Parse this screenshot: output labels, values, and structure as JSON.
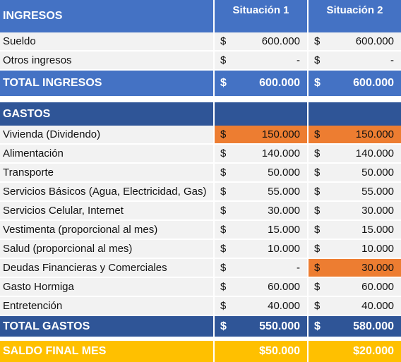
{
  "ingresos": {
    "title": "INGRESOS",
    "columns": [
      "Situación 1",
      "Situación 2"
    ],
    "rows": [
      {
        "label": "Sueldo",
        "cells": [
          [
            "$",
            "600.000"
          ],
          [
            "$",
            "600.000"
          ]
        ]
      },
      {
        "label": "Otros ingresos",
        "cells": [
          [
            "$",
            "-"
          ],
          [
            "$",
            "-"
          ]
        ]
      }
    ],
    "total": {
      "label": "TOTAL INGRESOS",
      "cells": [
        [
          "$",
          "600.000"
        ],
        [
          "$",
          "600.000"
        ]
      ]
    }
  },
  "gastos": {
    "title": "GASTOS",
    "rows": [
      {
        "label": "Vivienda (Dividendo)",
        "cells": [
          [
            "$",
            "150.000"
          ],
          [
            "$",
            "150.000"
          ]
        ]
      },
      {
        "label": "Alimentación",
        "cells": [
          [
            "$",
            "140.000"
          ],
          [
            "$",
            "140.000"
          ]
        ]
      },
      {
        "label": "Transporte",
        "cells": [
          [
            "$",
            "50.000"
          ],
          [
            "$",
            "50.000"
          ]
        ]
      },
      {
        "label": "Servicios Básicos (Agua, Electricidad, Gas)",
        "cells": [
          [
            "$",
            "55.000"
          ],
          [
            "$",
            "55.000"
          ]
        ]
      },
      {
        "label": "Servicios Celular, Internet",
        "cells": [
          [
            "$",
            "30.000"
          ],
          [
            "$",
            "30.000"
          ]
        ]
      },
      {
        "label": "Vestimenta (proporcional al mes)",
        "cells": [
          [
            "$",
            "15.000"
          ],
          [
            "$",
            "15.000"
          ]
        ]
      },
      {
        "label": "Salud (proporcional al mes)",
        "cells": [
          [
            "$",
            "10.000"
          ],
          [
            "$",
            "10.000"
          ]
        ]
      },
      {
        "label": "Deudas Financieras y Comerciales",
        "cells": [
          [
            "$",
            "-"
          ],
          [
            "$",
            "30.000"
          ]
        ]
      },
      {
        "label": "Gasto Hormiga",
        "cells": [
          [
            "$",
            "60.000"
          ],
          [
            "$",
            "60.000"
          ]
        ]
      },
      {
        "label": "Entretención",
        "cells": [
          [
            "$",
            "40.000"
          ],
          [
            "$",
            "40.000"
          ]
        ]
      }
    ],
    "total": {
      "label": "TOTAL GASTOS",
      "cells": [
        [
          "$",
          "550.000"
        ],
        [
          "$",
          "580.000"
        ]
      ]
    }
  },
  "saldo": {
    "label": "SALDO FINAL MES",
    "cells": [
      "$50.000",
      "$20.000"
    ]
  }
}
